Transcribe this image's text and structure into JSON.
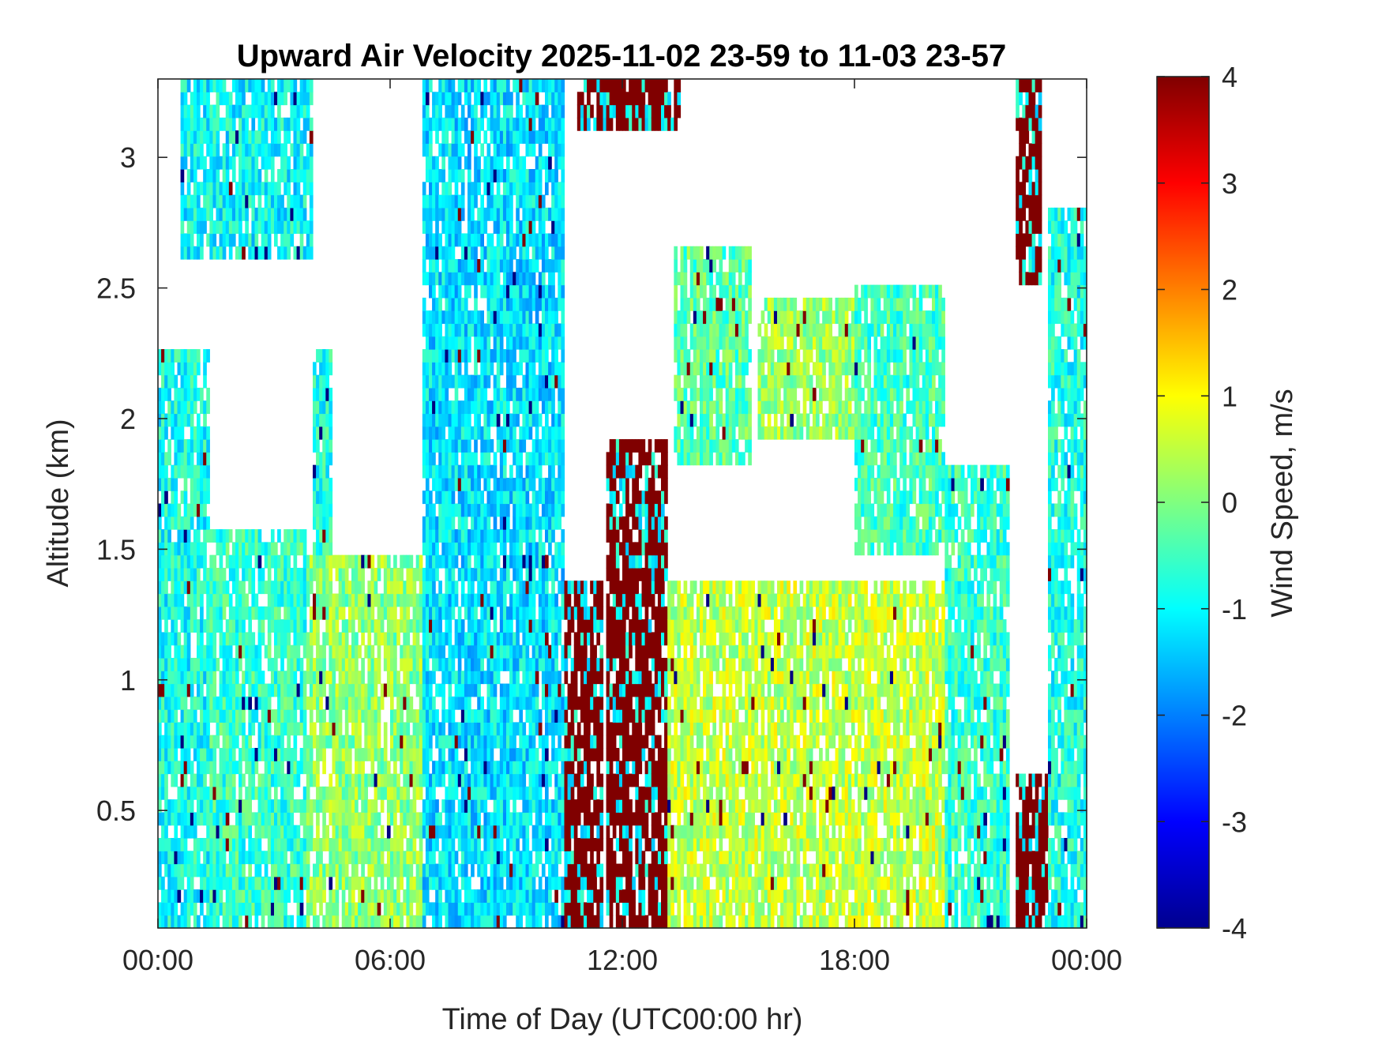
{
  "chart_data": {
    "type": "heatmap",
    "title": "Upward Air Velocity 2025-11-02 23-59 to 11-03 23-57",
    "xlabel": "Time of Day (UTC00:00 hr)",
    "ylabel": "Altitude (km)",
    "xlim": [
      0,
      24
    ],
    "ylim": [
      0.05,
      3.3
    ],
    "x_ticks": [
      {
        "value": 0,
        "label": "00:00"
      },
      {
        "value": 6,
        "label": "06:00"
      },
      {
        "value": 12,
        "label": "12:00"
      },
      {
        "value": 18,
        "label": "18:00"
      },
      {
        "value": 24,
        "label": "00:00"
      }
    ],
    "y_ticks": [
      {
        "value": 0.5,
        "label": "0.5"
      },
      {
        "value": 1,
        "label": "1"
      },
      {
        "value": 1.5,
        "label": "1.5"
      },
      {
        "value": 2,
        "label": "2"
      },
      {
        "value": 2.5,
        "label": "2.5"
      },
      {
        "value": 3,
        "label": "3"
      }
    ],
    "colorbar": {
      "label": "Wind Speed, m/s",
      "colormap": "jet",
      "range": [
        -4,
        4
      ],
      "ticks": [
        {
          "value": 4,
          "label": "4"
        },
        {
          "value": 3,
          "label": "3"
        },
        {
          "value": 2,
          "label": "2"
        },
        {
          "value": 1,
          "label": "1"
        },
        {
          "value": 0,
          "label": "0"
        },
        {
          "value": -1,
          "label": "-1"
        },
        {
          "value": -2,
          "label": "-2"
        },
        {
          "value": -3,
          "label": "-3"
        },
        {
          "value": -4,
          "label": "-4"
        }
      ]
    },
    "regions": [
      {
        "name": "early-low",
        "t0": 0.0,
        "t1": 1.3,
        "zmin": 0.05,
        "ztop": 2.25,
        "w": -0.9
      },
      {
        "name": "early-upper",
        "t0": 0.6,
        "t1": 4.0,
        "zmin": 2.6,
        "ztop": 3.3,
        "w": -1.0
      },
      {
        "name": "early-mid",
        "t0": 1.3,
        "t1": 3.8,
        "zmin": 0.05,
        "ztop": 1.6,
        "w": -0.6
      },
      {
        "name": "morning-boundary-layer",
        "t0": 3.8,
        "t1": 7.5,
        "zmin": 0.05,
        "ztop": 1.5,
        "w": 0.1
      },
      {
        "name": "morning-thermal-top",
        "t0": 4.0,
        "t1": 4.5,
        "zmin": 1.5,
        "ztop": 2.25,
        "w": -0.8
      },
      {
        "name": "descending-band",
        "t0": 6.8,
        "t1": 10.5,
        "zmin": 0.05,
        "ztop": 3.3,
        "w": -1.2
      },
      {
        "name": "noon-precip-left",
        "t0": 10.5,
        "t1": 11.5,
        "zmin": 0.05,
        "ztop": 1.4,
        "w": 4.0
      },
      {
        "name": "noon-precip-right",
        "t0": 11.6,
        "t1": 13.2,
        "zmin": 0.05,
        "ztop": 1.9,
        "w": 4.0
      },
      {
        "name": "noon-top",
        "t0": 10.8,
        "t1": 13.5,
        "zmin": 3.1,
        "ztop": 3.3,
        "w": 4.0
      },
      {
        "name": "afternoon-upper-band",
        "t0": 13.3,
        "t1": 15.3,
        "zmin": 1.8,
        "ztop": 2.65,
        "w": -0.3
      },
      {
        "name": "afternoon-upper-band-2",
        "t0": 15.5,
        "t1": 18.0,
        "zmin": 1.9,
        "ztop": 2.45,
        "w": 0.2
      },
      {
        "name": "afternoon-boundary-layer",
        "t0": 13.2,
        "t1": 20.5,
        "zmin": 0.05,
        "ztop": 1.4,
        "w": 0.5
      },
      {
        "name": "evening-sloping-band",
        "t0": 18.0,
        "t1": 20.3,
        "zmin": 1.5,
        "ztop": 2.5,
        "w": -0.5
      },
      {
        "name": "evening-layer",
        "t0": 20.3,
        "t1": 22.0,
        "zmin": 0.05,
        "ztop": 1.8,
        "w": -0.6
      },
      {
        "name": "late-precip",
        "t0": 22.2,
        "t1": 23.0,
        "zmin": 0.05,
        "ztop": 0.65,
        "w": 4.0
      },
      {
        "name": "late-top",
        "t0": 22.2,
        "t1": 22.8,
        "zmin": 2.5,
        "ztop": 3.3,
        "w": 4.0
      },
      {
        "name": "late-column",
        "t0": 23.0,
        "t1": 24.0,
        "zmin": 0.05,
        "ztop": 2.8,
        "w": -0.8
      }
    ]
  }
}
